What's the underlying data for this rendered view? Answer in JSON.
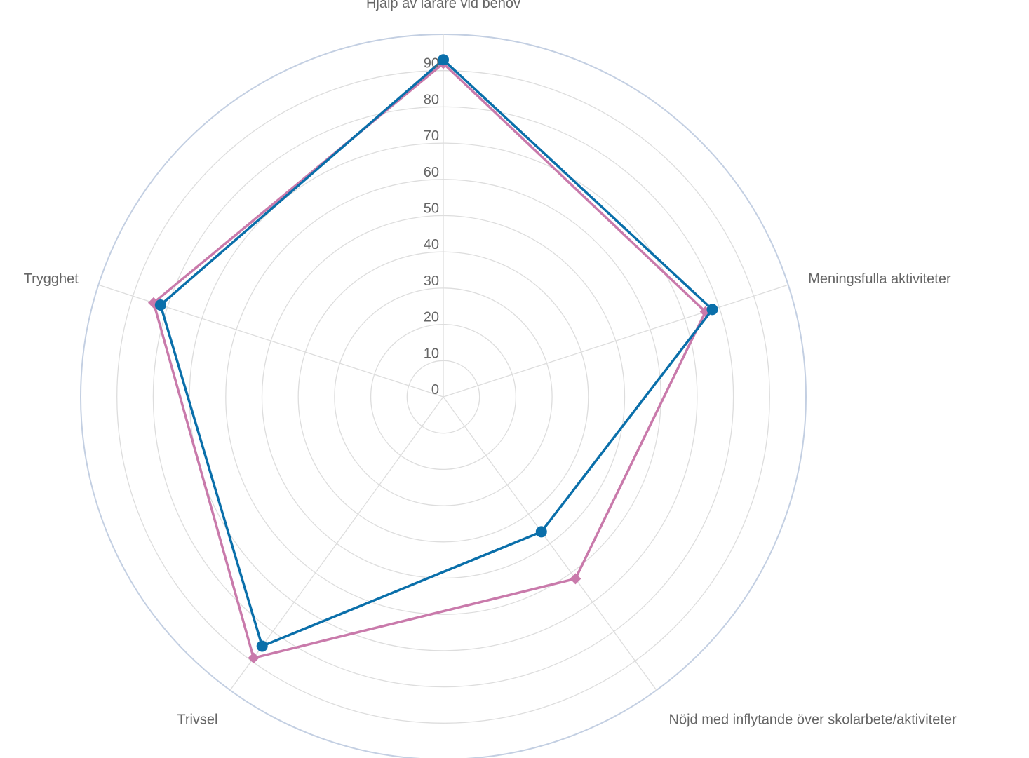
{
  "chart_data": {
    "type": "radar",
    "title": "",
    "categories": [
      "Hjälp av lärare vid behov",
      "Meningsfulla aktiviteter",
      "Nöjd med inflytande över skolarbete/aktiviteter",
      "Trivsel",
      "Trygghet"
    ],
    "r_ticks": [
      "0",
      "10",
      "20",
      "30",
      "40",
      "50",
      "60",
      "70",
      "80",
      "90"
    ],
    "rlim": [
      0,
      100
    ],
    "grid": true,
    "legend": "none",
    "series": [
      {
        "color": "#c97aab",
        "marker": "diamond",
        "values": [
          92,
          76,
          62,
          89,
          84
        ]
      },
      {
        "color": "#0a6faa",
        "marker": "circle",
        "values": [
          93,
          78,
          46,
          85,
          82
        ]
      }
    ],
    "colors": {
      "grid": "#dddddd",
      "outer_ring": "#c3cfe2",
      "text": "#666666"
    }
  }
}
